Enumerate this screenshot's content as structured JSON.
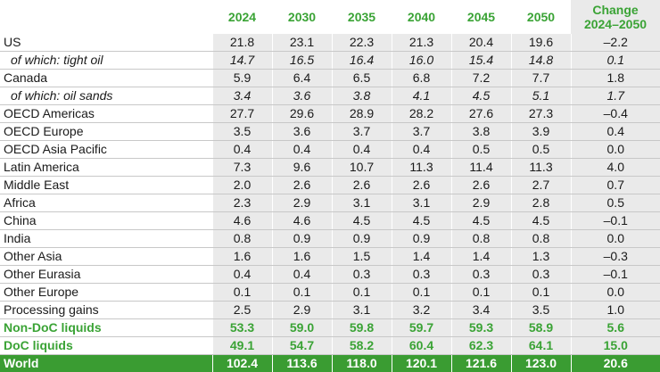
{
  "header": {
    "years": [
      "2024",
      "2030",
      "2035",
      "2040",
      "2045",
      "2050"
    ],
    "change_line1": "Change",
    "change_line2": "2024–2050"
  },
  "rows": [
    {
      "label": "US",
      "values": [
        "21.8",
        "23.1",
        "22.3",
        "21.3",
        "20.4",
        "19.6"
      ],
      "change": "–2.2"
    },
    {
      "label": "of which: tight oil",
      "values": [
        "14.7",
        "16.5",
        "16.4",
        "16.0",
        "15.4",
        "14.8"
      ],
      "change": "0.1"
    },
    {
      "label": "Canada",
      "values": [
        "5.9",
        "6.4",
        "6.5",
        "6.8",
        "7.2",
        "7.7"
      ],
      "change": "1.8"
    },
    {
      "label": "of which: oil sands",
      "values": [
        "3.4",
        "3.6",
        "3.8",
        "4.1",
        "4.5",
        "5.1"
      ],
      "change": "1.7"
    },
    {
      "label": "OECD Americas",
      "values": [
        "27.7",
        "29.6",
        "28.9",
        "28.2",
        "27.6",
        "27.3"
      ],
      "change": "–0.4"
    },
    {
      "label": "OECD Europe",
      "values": [
        "3.5",
        "3.6",
        "3.7",
        "3.7",
        "3.8",
        "3.9"
      ],
      "change": "0.4"
    },
    {
      "label": "OECD Asia Pacific",
      "values": [
        "0.4",
        "0.4",
        "0.4",
        "0.4",
        "0.5",
        "0.5"
      ],
      "change": "0.0"
    },
    {
      "label": "Latin America",
      "values": [
        "7.3",
        "9.6",
        "10.7",
        "11.3",
        "11.4",
        "11.3"
      ],
      "change": "4.0"
    },
    {
      "label": "Middle East",
      "values": [
        "2.0",
        "2.6",
        "2.6",
        "2.6",
        "2.6",
        "2.7"
      ],
      "change": "0.7"
    },
    {
      "label": "Africa",
      "values": [
        "2.3",
        "2.9",
        "3.1",
        "3.1",
        "2.9",
        "2.8"
      ],
      "change": "0.5"
    },
    {
      "label": "China",
      "values": [
        "4.6",
        "4.6",
        "4.5",
        "4.5",
        "4.5",
        "4.5"
      ],
      "change": "–0.1"
    },
    {
      "label": "India",
      "values": [
        "0.8",
        "0.9",
        "0.9",
        "0.9",
        "0.8",
        "0.8"
      ],
      "change": "0.0"
    },
    {
      "label": "Other Asia",
      "values": [
        "1.6",
        "1.6",
        "1.5",
        "1.4",
        "1.4",
        "1.3"
      ],
      "change": "–0.3"
    },
    {
      "label": "Other Eurasia",
      "values": [
        "0.4",
        "0.4",
        "0.3",
        "0.3",
        "0.3",
        "0.3"
      ],
      "change": "–0.1"
    },
    {
      "label": "Other Europe",
      "values": [
        "0.1",
        "0.1",
        "0.1",
        "0.1",
        "0.1",
        "0.1"
      ],
      "change": "0.0"
    },
    {
      "label": "Processing gains",
      "values": [
        "2.5",
        "2.9",
        "3.1",
        "3.2",
        "3.4",
        "3.5"
      ],
      "change": "1.0"
    },
    {
      "label": "Non-DoC liquids",
      "values": [
        "53.3",
        "59.0",
        "59.8",
        "59.7",
        "59.3",
        "58.9"
      ],
      "change": "5.6"
    },
    {
      "label": "DoC liquids",
      "values": [
        "49.1",
        "54.7",
        "58.2",
        "60.4",
        "62.3",
        "64.1"
      ],
      "change": "15.0"
    },
    {
      "label": "World",
      "values": [
        "102.4",
        "113.6",
        "118.0",
        "120.1",
        "121.6",
        "123.0"
      ],
      "change": "20.6"
    }
  ],
  "colors": {
    "accent_green": "#3aa335",
    "world_bg": "#3a9c32",
    "cell_bg": "#eaeaea"
  }
}
